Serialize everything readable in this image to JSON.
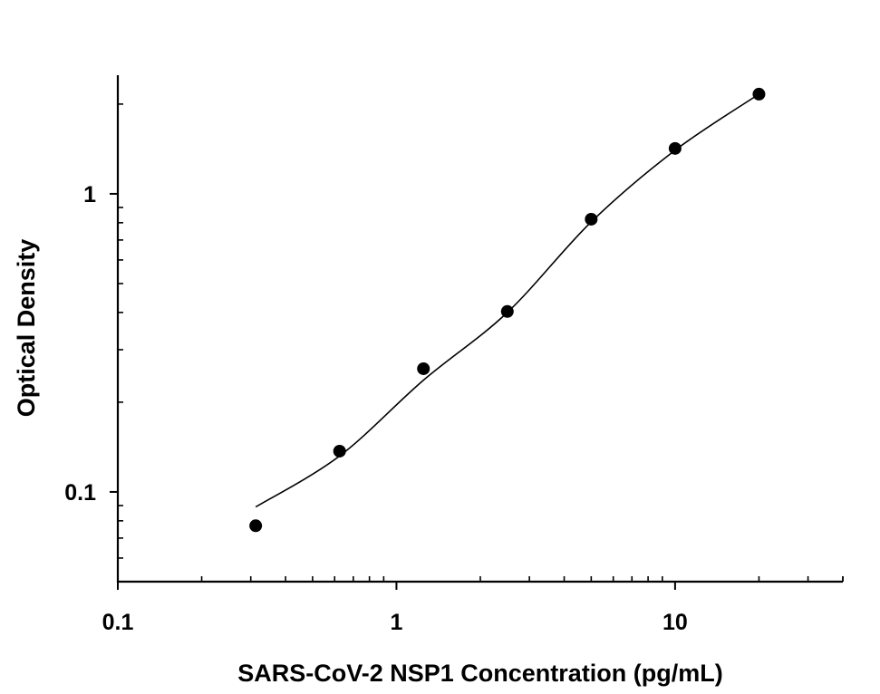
{
  "chart_data": {
    "type": "scatter",
    "title": "",
    "xlabel": "SARS-CoV-2 NSP1 Concentration (pg/mL)",
    "ylabel": "Optical Density",
    "x_scale": "log",
    "y_scale": "log",
    "xlim": [
      0.1,
      40
    ],
    "ylim": [
      0.05,
      2.5
    ],
    "x_ticks": [
      {
        "value": 0.1,
        "label": "0.1"
      },
      {
        "value": 1,
        "label": "1"
      },
      {
        "value": 10,
        "label": "10"
      }
    ],
    "y_ticks": [
      {
        "value": 0.1,
        "label": "0.1"
      },
      {
        "value": 1,
        "label": "1"
      }
    ],
    "grid": false,
    "points": {
      "x": [
        0.3125,
        0.625,
        1.25,
        2.5,
        5,
        10,
        20
      ],
      "y": [
        0.077,
        0.137,
        0.259,
        0.403,
        0.822,
        1.42,
        2.16
      ]
    },
    "fit_curve": {
      "x": [
        0.3125,
        0.625,
        1.25,
        2.5,
        5,
        10,
        20
      ],
      "y": [
        0.089,
        0.132,
        0.237,
        0.4,
        0.805,
        1.4,
        2.16
      ]
    },
    "colors": {
      "points": "#000000",
      "curve": "#000000",
      "axes": "#000000"
    }
  }
}
